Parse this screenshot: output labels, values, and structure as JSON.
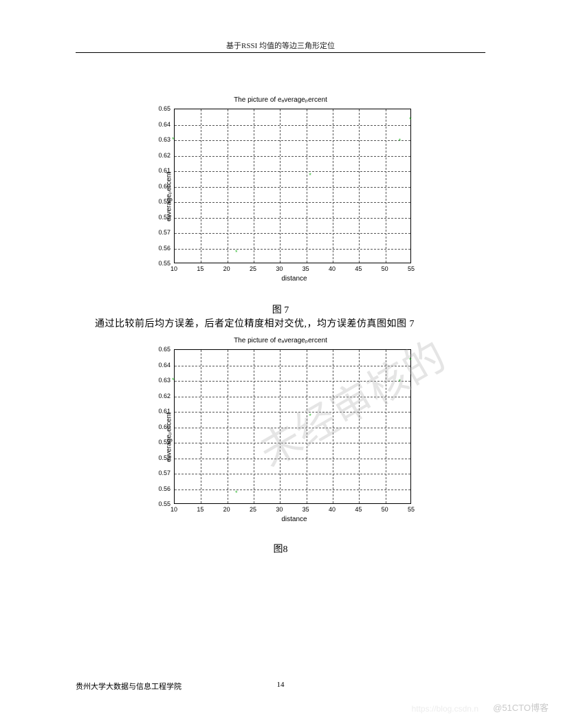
{
  "header": {
    "title": "基于RSSI 均值的等边三角形定位"
  },
  "chart": {
    "type": "scatter",
    "title": "The picture of eₐverageₚercent",
    "xlabel": "distance",
    "ylabel": "eₐverageₚercent",
    "xlim": [
      10,
      55
    ],
    "ylim": [
      0.55,
      0.65
    ],
    "xticks": [
      10,
      15,
      20,
      25,
      30,
      35,
      40,
      45,
      50,
      55
    ],
    "yticks": [
      0.55,
      0.56,
      0.57,
      0.58,
      0.59,
      0.6,
      0.61,
      0.62,
      0.63,
      0.64,
      0.65
    ],
    "marker_color": "#2ab52a",
    "marker_style": "*",
    "grid_color": "#555555",
    "grid_style": "dashed",
    "background_color": "#ffffff",
    "title_fontsize": 10,
    "label_fontsize": 10,
    "tick_fontsize": 9,
    "points": [
      {
        "x": 10,
        "y": 0.63
      },
      {
        "x": 22,
        "y": 0.557
      },
      {
        "x": 36,
        "y": 0.607
      },
      {
        "x": 53,
        "y": 0.629
      },
      {
        "x": 55,
        "y": 0.643
      }
    ]
  },
  "captions": {
    "fig7": "图 7",
    "fig8": "图8"
  },
  "body": {
    "line1": "通过比较前后均方误差，后者定位精度相对交优,，均方误差仿真图如图 7"
  },
  "footer": {
    "left": "贵州大学大数据与信息工程学院",
    "page": "14"
  },
  "watermark": {
    "diag": "未经审核的",
    "url": "https://blog.csdn.n",
    "br": "@51CTO博客"
  }
}
